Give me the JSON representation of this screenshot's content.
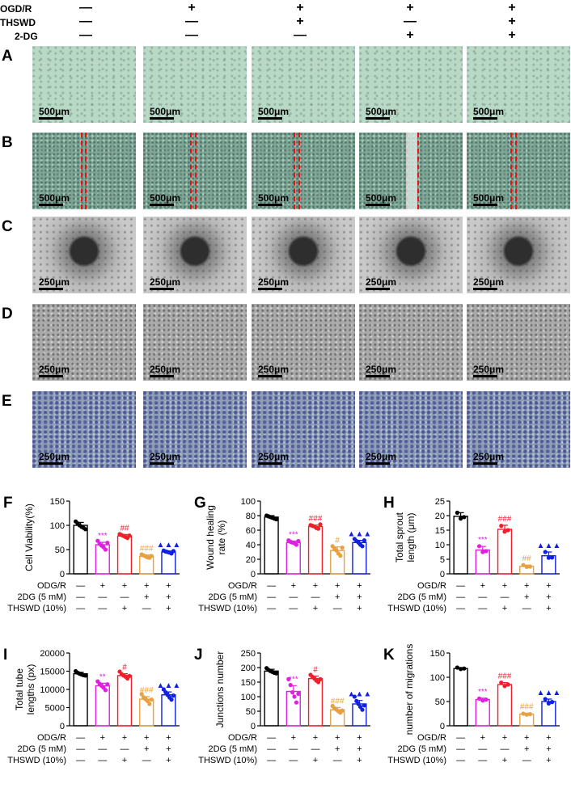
{
  "header": {
    "rows": [
      {
        "label": "OGD/R",
        "signs": [
          "—",
          "+",
          "+",
          "+",
          "+"
        ]
      },
      {
        "label": "THSWD",
        "signs": [
          "—",
          "—",
          "+",
          "—",
          "+"
        ]
      },
      {
        "label": "2-DG",
        "signs": [
          "—",
          "—",
          "—",
          "+",
          "+"
        ]
      }
    ]
  },
  "image_rows": [
    {
      "letter": "A",
      "scale": "500μm",
      "texture": "tex-a"
    },
    {
      "letter": "B",
      "scale": "500μm",
      "texture": "tex-b"
    },
    {
      "letter": "C",
      "scale": "250μm",
      "texture": "tex-c"
    },
    {
      "letter": "D",
      "scale": "250μm",
      "texture": "tex-d"
    },
    {
      "letter": "E",
      "scale": "250μm",
      "texture": "tex-e"
    }
  ],
  "colors": {
    "control": "#000000",
    "ogdr": "#e020e0",
    "thswd": "#f0202a",
    "twodg": "#e8a040",
    "combo": "#1020e0"
  },
  "chart_data": [
    {
      "panel": "F",
      "type": "bar",
      "ylabel": "Cell Viability(%)",
      "ylim": [
        0,
        150
      ],
      "yticks": [
        0,
        50,
        100,
        150
      ],
      "values": [
        100,
        60,
        78,
        36,
        45
      ],
      "errors": [
        6,
        5,
        3,
        3,
        2
      ],
      "points": [
        [
          108,
          104,
          100,
          97,
          95,
          92
        ],
        [
          68,
          62,
          58,
          55,
          50,
          64
        ],
        [
          82,
          80,
          78,
          76,
          74,
          79
        ],
        [
          40,
          38,
          36,
          34,
          33,
          37
        ],
        [
          48,
          46,
          45,
          44,
          42,
          47
        ]
      ],
      "sig": [
        "",
        "***",
        "##",
        "###",
        "▲▲▲"
      ],
      "rows": [
        {
          "label": "ODG/R",
          "signs": [
            "—",
            "+",
            "+",
            "+",
            "+"
          ]
        },
        {
          "label": "2DG (5 mM)",
          "signs": [
            "—",
            "—",
            "—",
            "+",
            "+"
          ]
        },
        {
          "label": "THSWD (10%)",
          "signs": [
            "—",
            "—",
            "+",
            "—",
            "+"
          ]
        }
      ]
    },
    {
      "panel": "G",
      "type": "bar",
      "ylabel": "Wound healing\nrate (%)",
      "ylim": [
        0,
        100
      ],
      "yticks": [
        0,
        20,
        40,
        60,
        80,
        100
      ],
      "values": [
        78,
        43,
        65,
        32,
        43
      ],
      "errors": [
        2,
        2,
        2,
        5,
        3
      ],
      "points": [
        [
          80,
          79,
          78,
          77,
          76,
          75
        ],
        [
          46,
          44,
          43,
          42,
          40,
          45
        ],
        [
          67,
          66,
          65,
          63,
          62,
          68
        ],
        [
          38,
          35,
          32,
          28,
          25,
          36
        ],
        [
          48,
          45,
          43,
          40,
          38,
          46
        ]
      ],
      "sig": [
        "",
        "***",
        "###",
        "#",
        "▲▲▲"
      ],
      "rows": [
        {
          "label": "OGD/R",
          "signs": [
            "—",
            "+",
            "+",
            "+",
            "+"
          ]
        },
        {
          "label": "2DG (5 mM)",
          "signs": [
            "—",
            "—",
            "—",
            "+",
            "+"
          ]
        },
        {
          "label": "THSWD (10%)",
          "signs": [
            "—",
            "—",
            "+",
            "—",
            "+"
          ]
        }
      ]
    },
    {
      "panel": "H",
      "type": "bar",
      "ylabel": "Total sprout\nlength (μm)",
      "ylim": [
        0,
        25
      ],
      "yticks": [
        0,
        5,
        10,
        15,
        20,
        25
      ],
      "values": [
        19.8,
        8.2,
        15.3,
        2.6,
        6.2
      ],
      "errors": [
        1.2,
        1.2,
        1.4,
        0.4,
        1.3
      ],
      "points": [
        [
          21,
          19,
          19.5
        ],
        [
          9.5,
          7.5,
          7.8
        ],
        [
          16.5,
          14.5,
          15
        ],
        [
          3,
          2.4,
          2.5
        ],
        [
          7.5,
          5.5,
          5.6
        ]
      ],
      "sig": [
        "",
        "***",
        "###",
        "##",
        "▲▲▲"
      ],
      "rows": [
        {
          "label": "OGD/R",
          "signs": [
            "—",
            "+",
            "+",
            "+",
            "+"
          ]
        },
        {
          "label": "2DG (5 mM)",
          "signs": [
            "—",
            "—",
            "—",
            "+",
            "+"
          ]
        },
        {
          "label": "THSWD (10%)",
          "signs": [
            "—",
            "—",
            "+",
            "—",
            "+"
          ]
        }
      ]
    },
    {
      "panel": "I",
      "type": "bar",
      "ylabel": "Total tube\nlengths (px)",
      "ylim": [
        0,
        20000
      ],
      "yticks": [
        0,
        5000,
        10000,
        15000,
        20000
      ],
      "values": [
        14300,
        11000,
        13800,
        7300,
        8500
      ],
      "errors": [
        400,
        700,
        500,
        700,
        800
      ],
      "points": [
        [
          15000,
          14600,
          14300,
          14100,
          13900,
          13800
        ],
        [
          12200,
          11500,
          11000,
          10500,
          9800,
          11400
        ],
        [
          14900,
          14200,
          13800,
          13500,
          13000,
          13700
        ],
        [
          8700,
          7800,
          7300,
          6800,
          6000,
          7200
        ],
        [
          10000,
          9200,
          8500,
          7800,
          7200,
          8300
        ]
      ],
      "sig": [
        "",
        "**",
        "#",
        "###",
        "▲▲▲"
      ],
      "rows": [
        {
          "label": "ODG/R",
          "signs": [
            "—",
            "+",
            "+",
            "+",
            "+"
          ]
        },
        {
          "label": "2DG (5 mM)",
          "signs": [
            "—",
            "—",
            "—",
            "+",
            "+"
          ]
        },
        {
          "label": "THSWD (10%)",
          "signs": [
            "—",
            "—",
            "+",
            "—",
            "+"
          ]
        }
      ]
    },
    {
      "panel": "J",
      "type": "bar",
      "ylabel": "Junctions number",
      "ylim": [
        0,
        250
      ],
      "yticks": [
        0,
        50,
        100,
        150,
        200,
        250
      ],
      "values": [
        188,
        118,
        162,
        55,
        75
      ],
      "errors": [
        6,
        20,
        9,
        8,
        12
      ],
      "points": [
        [
          198,
          192,
          188,
          185,
          182,
          180
        ],
        [
          160,
          140,
          115,
          100,
          80,
          110
        ],
        [
          175,
          168,
          162,
          155,
          150,
          160
        ],
        [
          68,
          60,
          55,
          50,
          45,
          52
        ],
        [
          100,
          85,
          75,
          65,
          55,
          70
        ]
      ],
      "sig": [
        "",
        "***",
        "#",
        "###",
        "▲▲▲"
      ],
      "rows": [
        {
          "label": "ODG/R",
          "signs": [
            "—",
            "+",
            "+",
            "+",
            "+"
          ]
        },
        {
          "label": "2DG (5 mM)",
          "signs": [
            "—",
            "—",
            "—",
            "+",
            "+"
          ]
        },
        {
          "label": "THSWD (10%)",
          "signs": [
            "—",
            "—",
            "+",
            "—",
            "+"
          ]
        }
      ]
    },
    {
      "panel": "K",
      "type": "bar",
      "ylabel": "number of migrations",
      "ylim": [
        0,
        150
      ],
      "yticks": [
        0,
        50,
        100,
        150
      ],
      "values": [
        118,
        54,
        85,
        24,
        50
      ],
      "errors": [
        2,
        3,
        4,
        2,
        5
      ],
      "points": [
        [
          120,
          117,
          118
        ],
        [
          56,
          52,
          54
        ],
        [
          89,
          82,
          85
        ],
        [
          25,
          23,
          24
        ],
        [
          55,
          46,
          49
        ]
      ],
      "sig": [
        "",
        "***",
        "###",
        "###",
        "▲▲▲"
      ],
      "rows": [
        {
          "label": "OGD/R",
          "signs": [
            "—",
            "+",
            "+",
            "+",
            "+"
          ]
        },
        {
          "label": "2DG (5 mM)",
          "signs": [
            "—",
            "—",
            "—",
            "+",
            "+"
          ]
        },
        {
          "label": "THSWD (10%)",
          "signs": [
            "—",
            "—",
            "+",
            "—",
            "+"
          ]
        }
      ]
    }
  ]
}
